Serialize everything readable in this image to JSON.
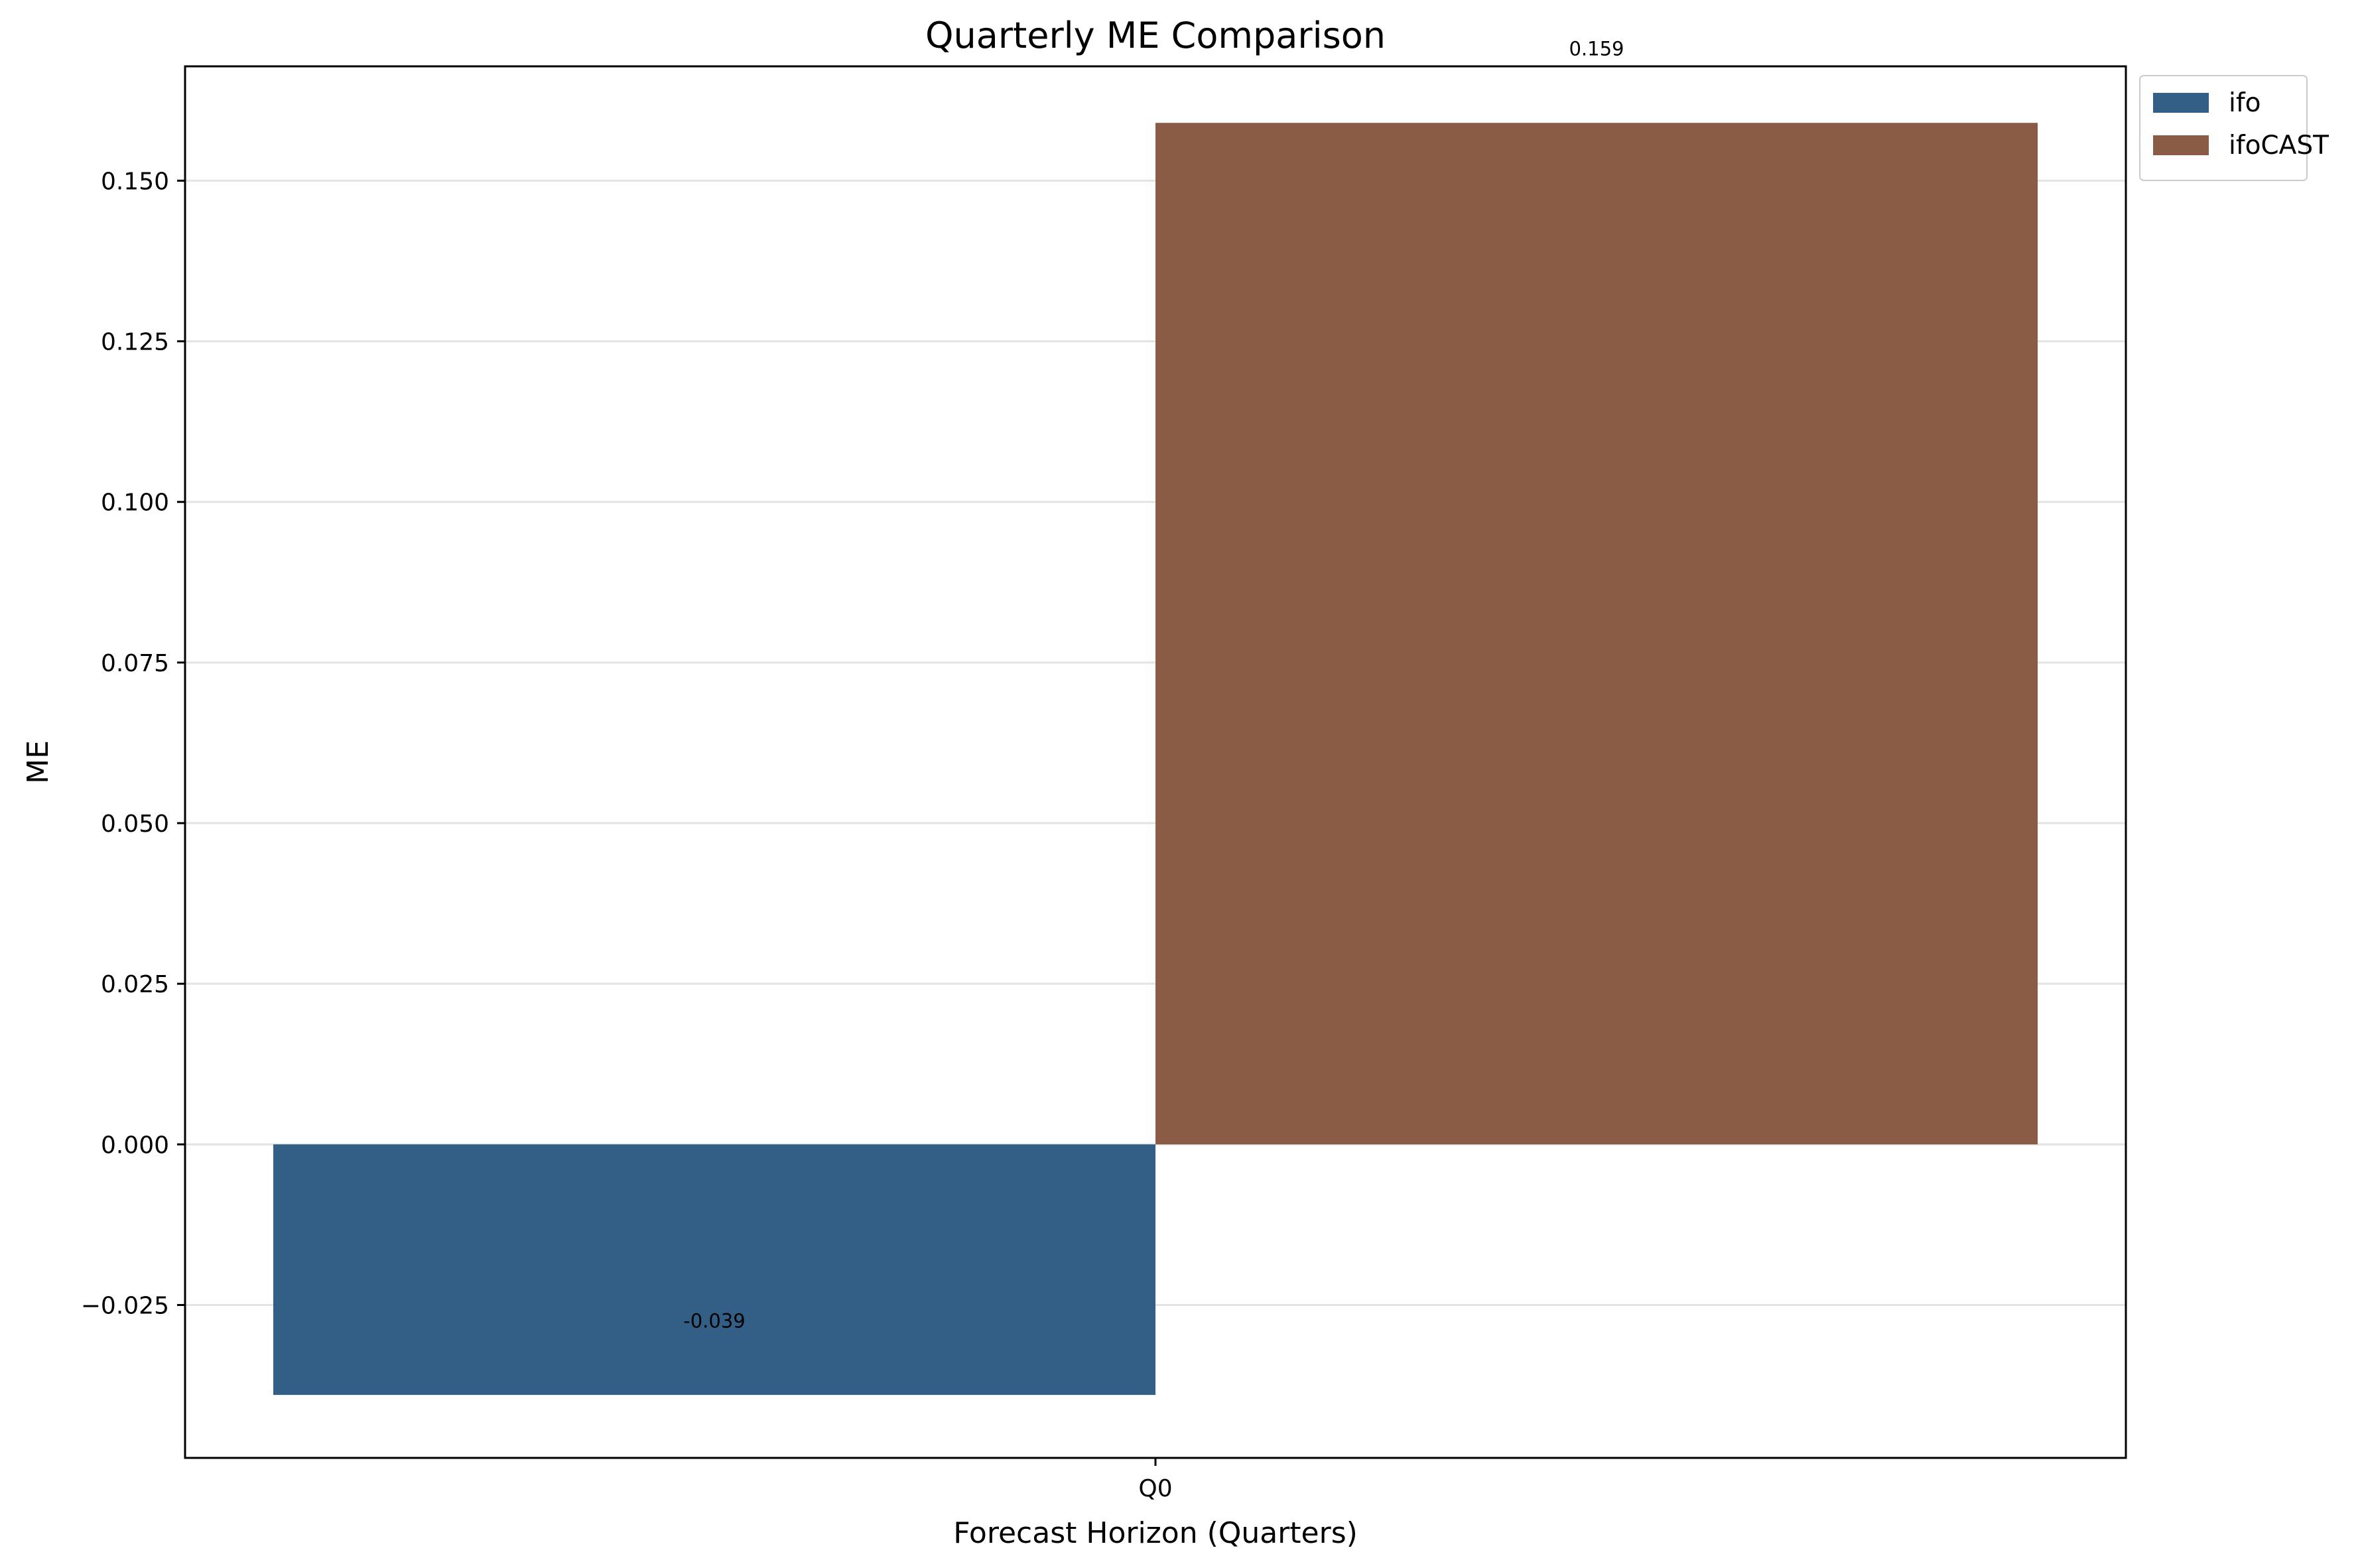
{
  "chart_data": {
    "type": "bar",
    "title": "Quarterly ME Comparison",
    "xlabel": "Forecast Horizon (Quarters)",
    "ylabel": "ME",
    "categories": [
      "Q0"
    ],
    "series": [
      {
        "name": "ifo",
        "values": [
          -0.039
        ],
        "labels": [
          "-0.039"
        ],
        "color": "#335e86"
      },
      {
        "name": "ifoCAST",
        "values": [
          0.159
        ],
        "labels": [
          "0.159"
        ],
        "color": "#8a5c46"
      }
    ],
    "ylim": [
      -0.0488,
      0.1678
    ],
    "yticks": [
      -0.025,
      0.0,
      0.025,
      0.05,
      0.075,
      0.1,
      0.125,
      0.15
    ],
    "ytick_labels": [
      "−0.025",
      "0.000",
      "0.025",
      "0.050",
      "0.075",
      "0.100",
      "0.125",
      "0.150"
    ],
    "grid": true,
    "legend_position": "outside-top-right"
  }
}
